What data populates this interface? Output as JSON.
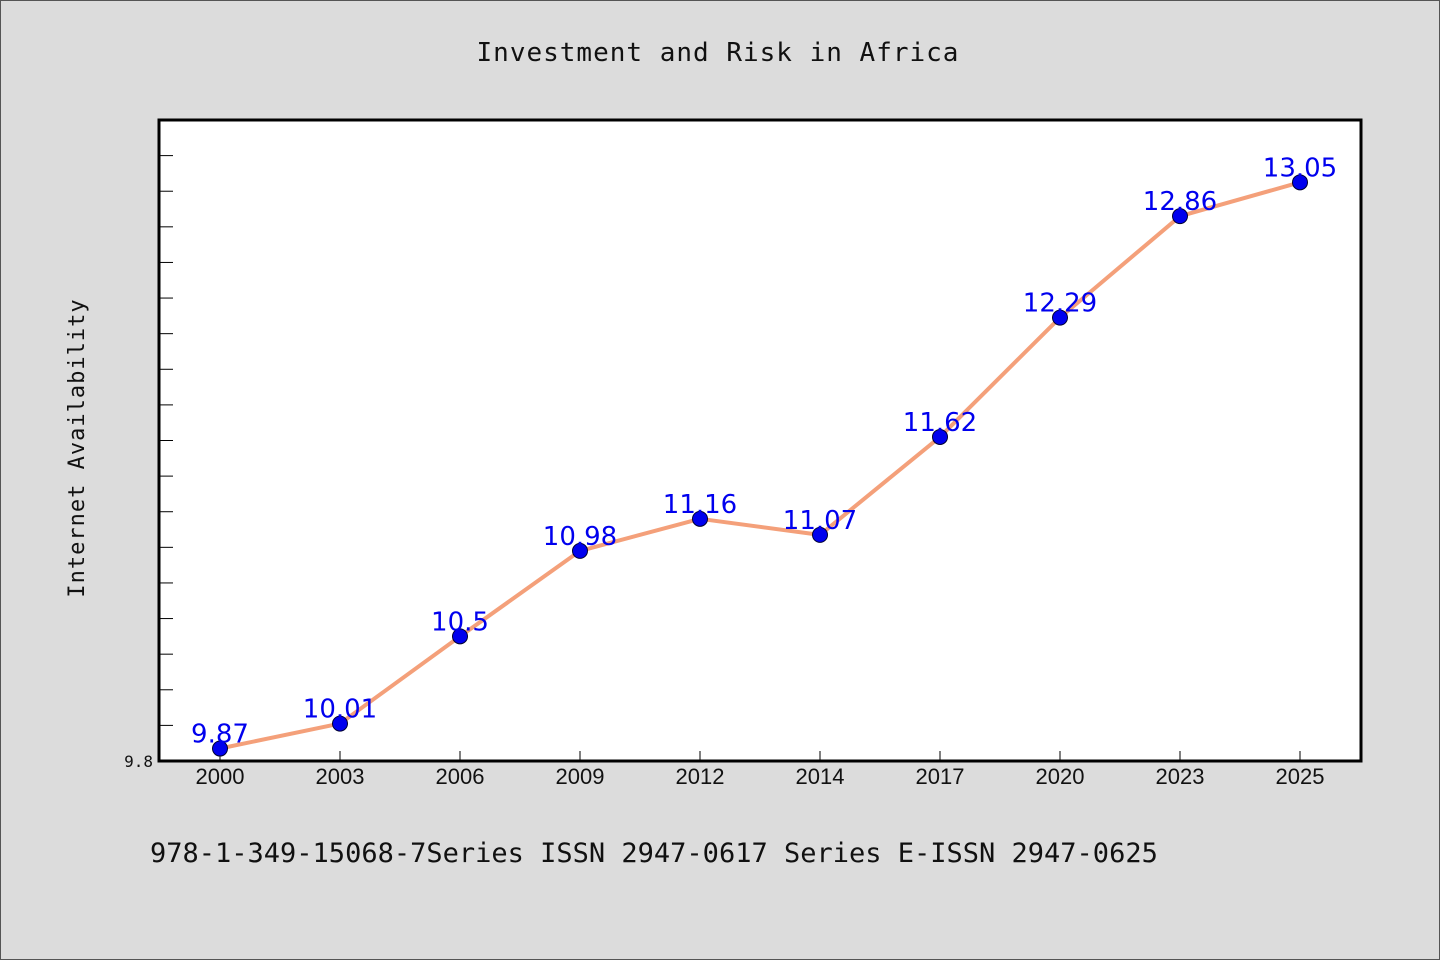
{
  "chart_data": {
    "type": "line",
    "title": "Investment and Risk in Africa",
    "xlabel": "",
    "ylabel": "Internet Availability",
    "categories": [
      "2000",
      "2003",
      "2006",
      "2009",
      "2012",
      "2014",
      "2017",
      "2020",
      "2023",
      "2025"
    ],
    "series": [
      {
        "values": [
          9.87,
          10.01,
          10.5,
          10.98,
          11.16,
          11.07,
          11.62,
          12.29,
          12.86,
          13.05
        ]
      }
    ],
    "data_labels": [
      "9.87",
      "10.01",
      "10.5",
      "10.98",
      "11.16",
      "11.07",
      "11.62",
      "12.29",
      "12.86",
      "13.05"
    ],
    "ylim": [
      9.8,
      13.4
    ],
    "y_tick_labels": [
      "9.8"
    ],
    "grid": false,
    "colors": {
      "line": "#f4a07a",
      "marker": "#0000ee",
      "data_label": "#0000ee",
      "plot_background": "#ffffff",
      "figure_background": "#dcdcdc"
    }
  },
  "footer_text": "978-1-349-15068-7Series ISSN 2947-0617 Series E-ISSN 2947-0625"
}
